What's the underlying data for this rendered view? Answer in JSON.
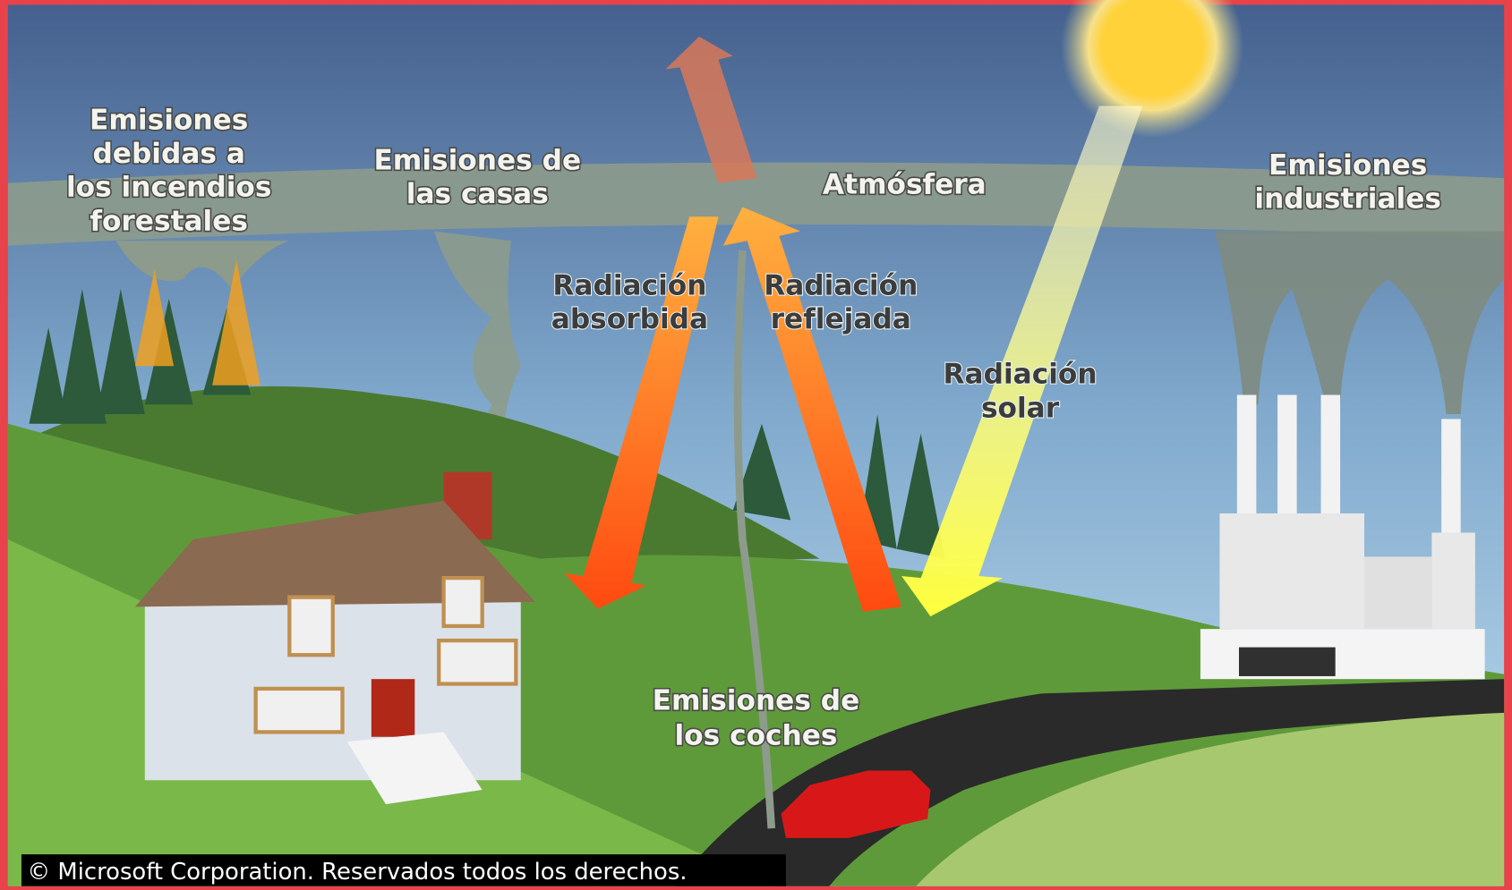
{
  "labels": {
    "forest_fires": [
      "Emisiones",
      "debidas a",
      "los incendios",
      "forestales"
    ],
    "houses": [
      "Emisiones de",
      "las casas"
    ],
    "atmosphere": "Atmósfera",
    "industry": [
      "Emisiones",
      "industriales"
    ],
    "absorbed": [
      "Radiación",
      "absorbida"
    ],
    "reflected": [
      "Radiación",
      "reflejada"
    ],
    "solar": [
      "Radiación",
      "solar"
    ],
    "cars": [
      "Emisiones de",
      "los coches"
    ]
  },
  "copyright": "© Microsoft Corporation. Reservados todos los derechos."
}
